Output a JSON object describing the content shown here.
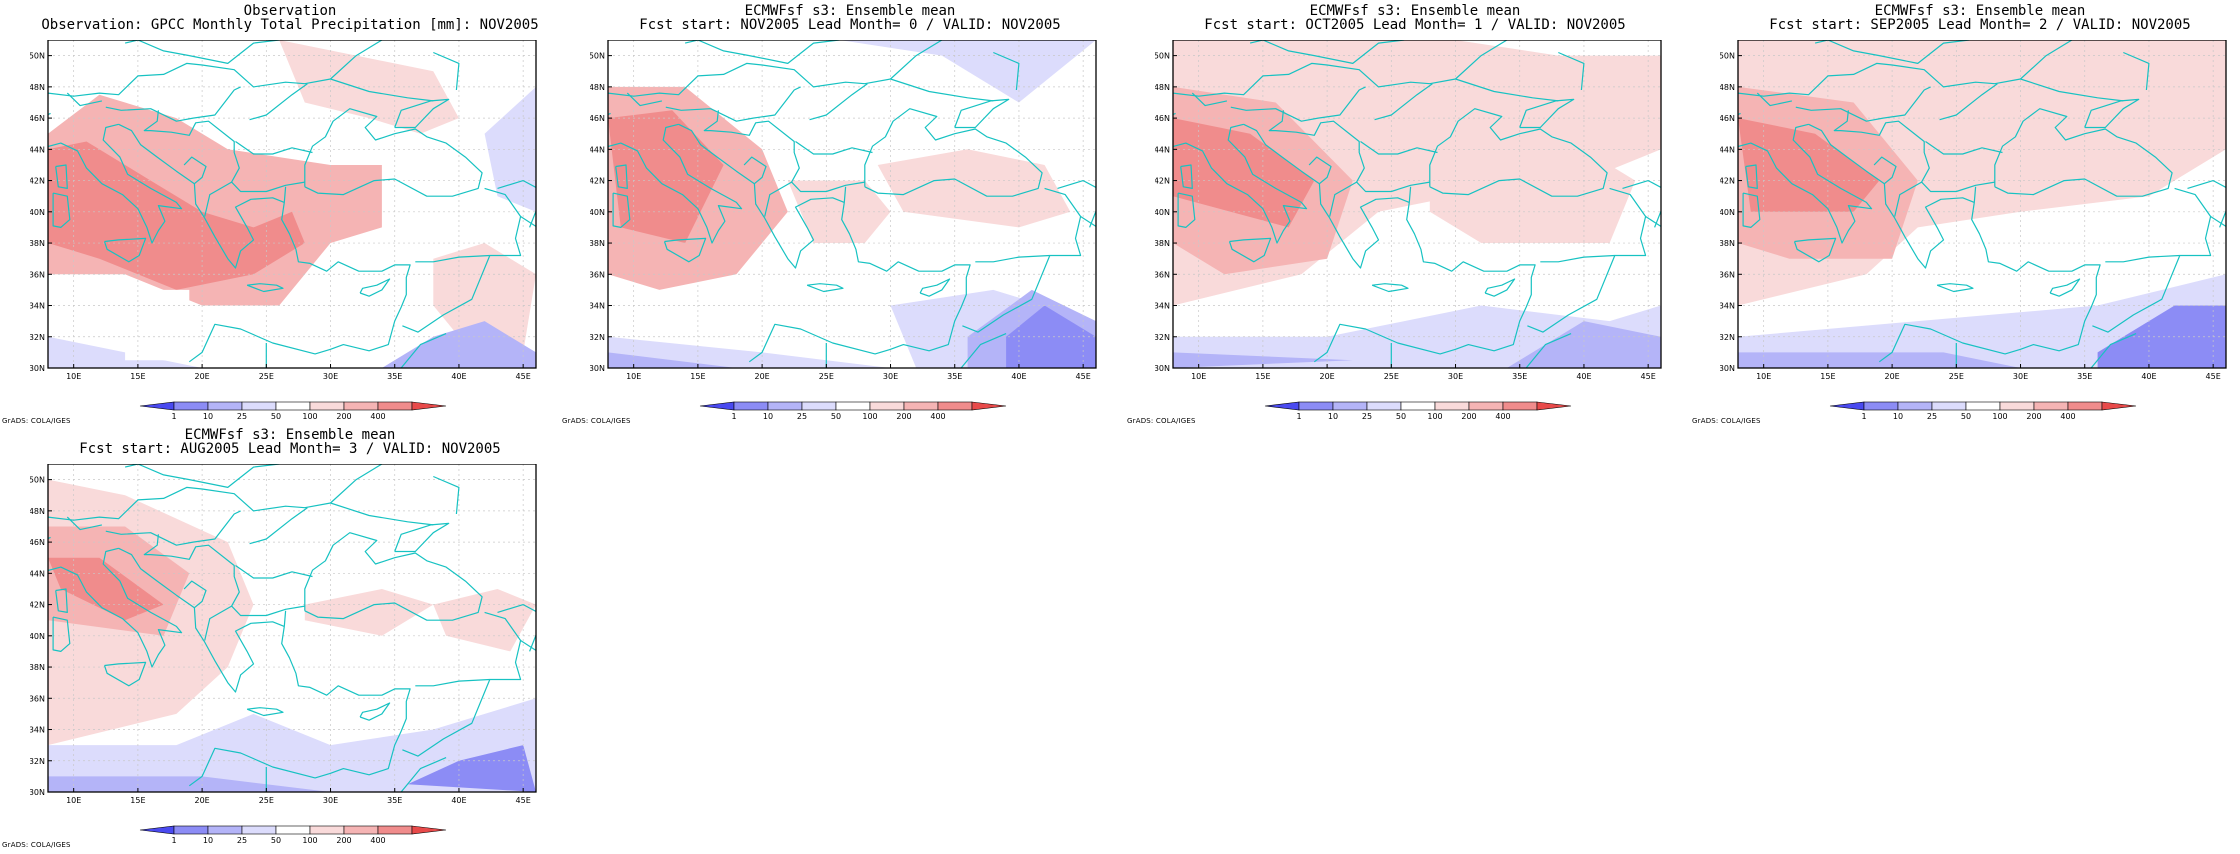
{
  "panels": [
    {
      "id": "obs",
      "title1": "Observation",
      "title2": "Observation: GPCC Monthly Total Precipitation [mm]: NOV2005"
    },
    {
      "id": "lead0",
      "title1": "ECMWFsf s3: Ensemble mean",
      "title2": "Fcst start: NOV2005  Lead Month= 0 / VALID: NOV2005"
    },
    {
      "id": "lead1",
      "title1": "ECMWFsf s3: Ensemble mean",
      "title2": "Fcst start: OCT2005  Lead Month= 1 / VALID: NOV2005"
    },
    {
      "id": "lead2",
      "title1": "ECMWFsf s3: Ensemble mean",
      "title2": "Fcst start: SEP2005  Lead Month= 2 / VALID: NOV2005"
    },
    {
      "id": "lead3",
      "title1": "ECMWFsf s3: Ensemble mean",
      "title2": "Fcst start: AUG2005  Lead Month= 3 / VALID: NOV2005"
    }
  ],
  "map": {
    "lat_labels": [
      "30N",
      "32N",
      "34N",
      "36N",
      "38N",
      "40N",
      "42N",
      "44N",
      "46N",
      "48N",
      "50N"
    ],
    "lon_labels": [
      "10E",
      "15E",
      "20E",
      "25E",
      "30E",
      "35E",
      "40E",
      "45E"
    ],
    "lat_range": [
      30,
      51
    ],
    "lon_range": [
      8,
      46
    ],
    "grid": true
  },
  "colorbar": {
    "labels": [
      "1",
      "10",
      "25",
      "50",
      "100",
      "200",
      "400"
    ],
    "colors": [
      "#4a4af0",
      "#8c8cf5",
      "#b4b4f8",
      "#dcdcfc",
      "#ffffff",
      "#f9dada",
      "#f5b4b4",
      "#f08c8c",
      "#e84a4a"
    ]
  },
  "footer": "GrADS: COLA/IGES"
}
